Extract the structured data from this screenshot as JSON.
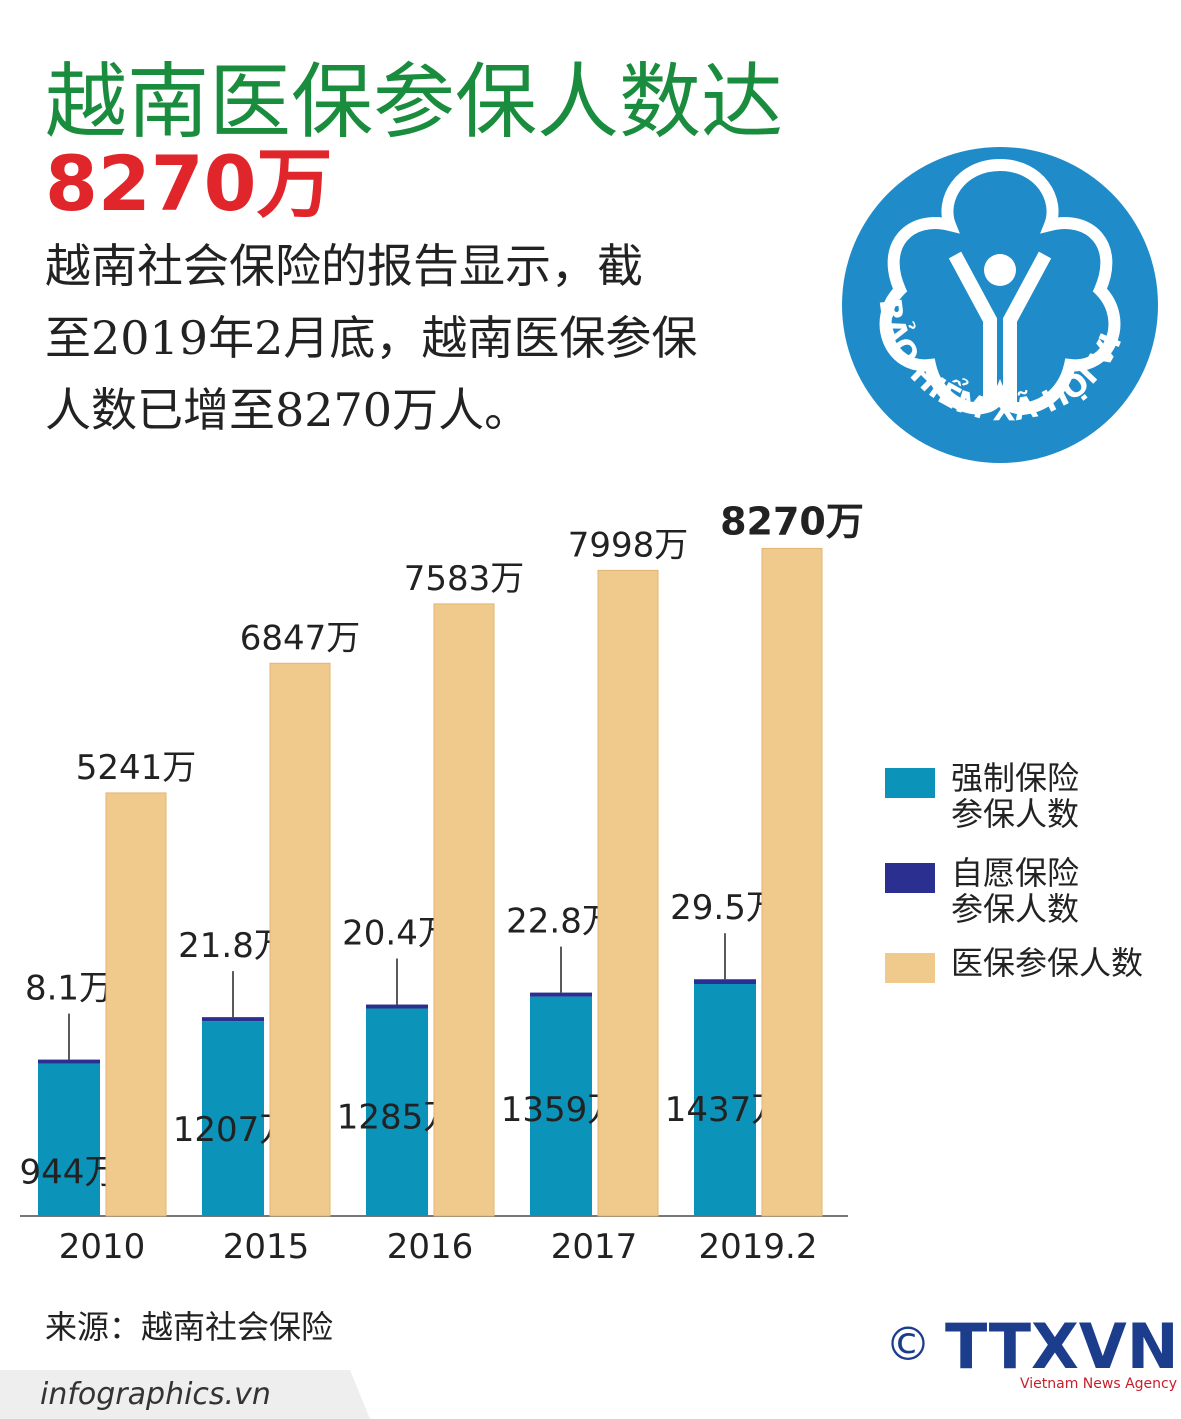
{
  "header": {
    "title": "越南医保参保人数达",
    "highlight": "8270万",
    "description": [
      "越南社会保险的报告显示，截",
      "至2019年2月底，越南医保参保",
      "人数已增至8270万人。"
    ]
  },
  "logo": {
    "text": "BẢO HIỂM XÃ HỘI VIỆT NAM"
  },
  "chart_data": {
    "type": "bar",
    "categories": [
      "2010",
      "2015",
      "2016",
      "2017",
      "2019.2"
    ],
    "series": [
      {
        "name": "强制保险参保人数",
        "color": "#0b93ba",
        "axis": "y2",
        "values": [
          944,
          1207,
          1285,
          1359,
          1437
        ],
        "value_labels": [
          "944万",
          "1207万",
          "1285万",
          "1359万",
          "1437万"
        ]
      },
      {
        "name": "自愿保险参保人数",
        "color": "#2b2f8f",
        "axis": "y2",
        "values": [
          8.1,
          21.8,
          20.4,
          22.8,
          29.5
        ],
        "value_labels": [
          "8.1万",
          "21.8万",
          "20.4万",
          "22.8万",
          "29.5万"
        ]
      },
      {
        "name": "医保参保人数",
        "color": "#f0c98c",
        "values": [
          5241,
          6847,
          7583,
          7998,
          8270
        ],
        "value_labels": [
          "5241万",
          "6847万",
          "7583万",
          "7998万",
          "8270万"
        ]
      }
    ],
    "ylim": [
      0,
      8300
    ],
    "y2lim": [
      0,
      4150
    ],
    "source": "来源：越南社会保险"
  },
  "footer": {
    "site": "infographics.vn",
    "copyright": "©",
    "agency": "TTXVN",
    "agency_en": "Vietnam News Agency"
  }
}
